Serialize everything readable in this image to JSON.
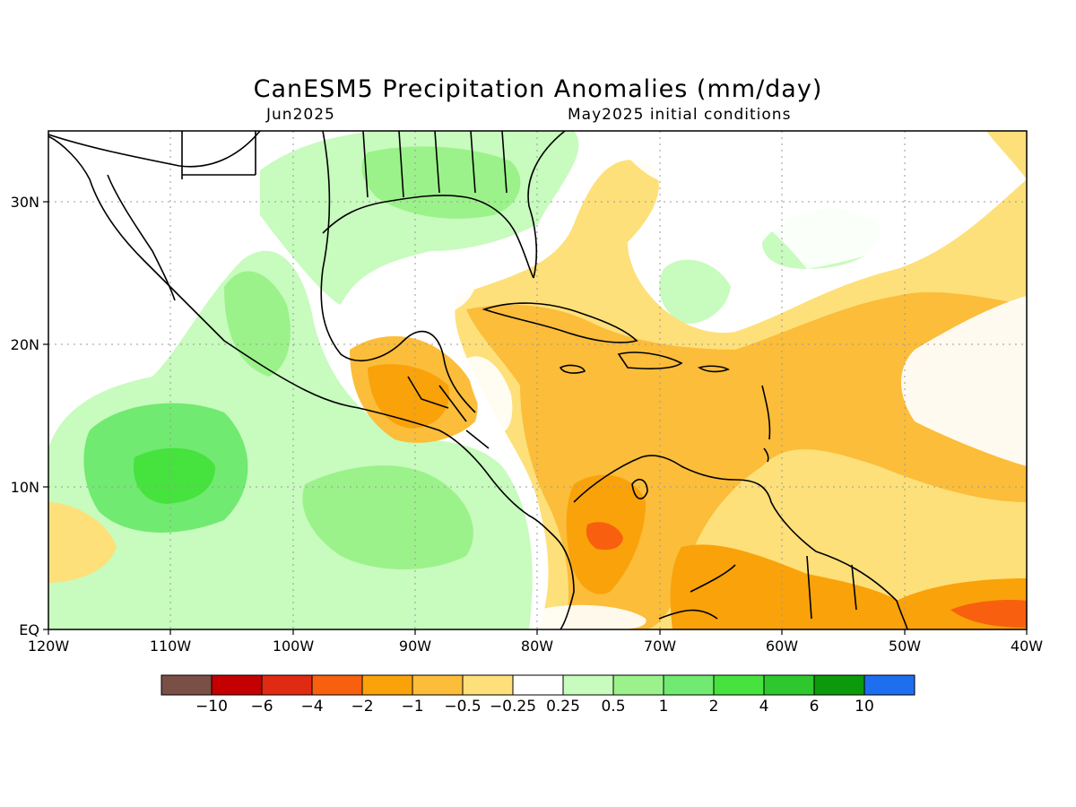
{
  "title": "CanESM5 Precipitation Anomalies (mm/day)",
  "subtitle_left": "Jun2025",
  "subtitle_right": "May2025 initial conditions",
  "map": {
    "lon_labels": [
      "120W",
      "110W",
      "100W",
      "90W",
      "80W",
      "70W",
      "60W",
      "50W",
      "40W"
    ],
    "lat_labels": [
      "EQ",
      "10N",
      "20N",
      "30N"
    ],
    "gridlines": "dotted"
  },
  "colorbar": {
    "colors": [
      "#7a4f46",
      "#c40000",
      "#e02a12",
      "#f86010",
      "#f9a20a",
      "#fbbd3a",
      "#fde07a",
      "#ffffff",
      "#c8fbbe",
      "#9cf28a",
      "#70ea70",
      "#46e23e",
      "#2ec82e",
      "#0c9a0c",
      "#1e6ef0"
    ],
    "labels": [
      "−10",
      "−6",
      "−4",
      "−2",
      "−1",
      "−0.5",
      "−0.25",
      "0.25",
      "0.5",
      "1",
      "2",
      "4",
      "6",
      "10"
    ]
  }
}
